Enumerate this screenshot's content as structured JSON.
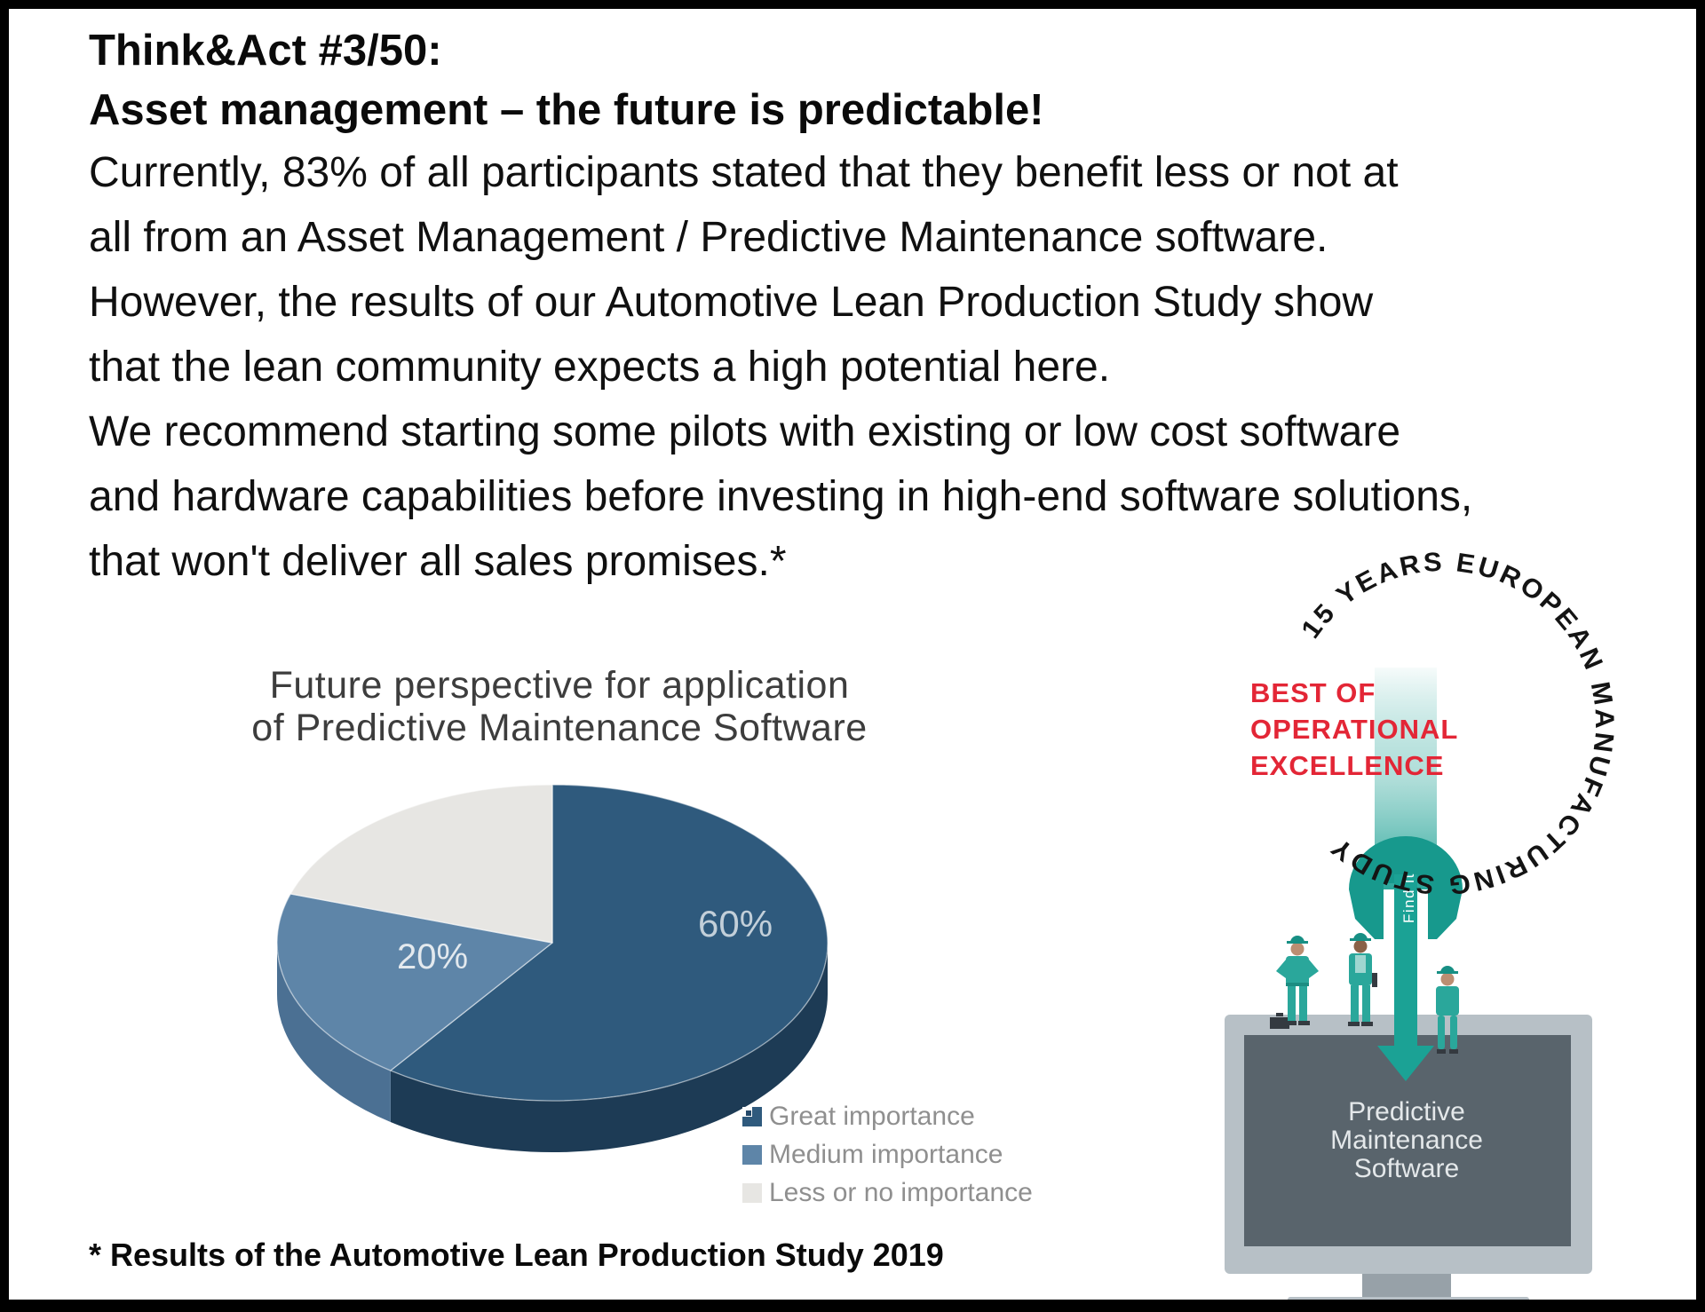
{
  "page": {
    "title_lines": [
      "Think&Act #3/50:",
      "Asset management – the future is predictable!"
    ],
    "body_lines": [
      "Currently, 83% of all participants stated that they benefit less or not at",
      "all from an Asset Management / Predictive Maintenance software.",
      "However, the results of our Automotive Lean Production Study show",
      "that the lean community expects a high potential here.",
      "We recommend starting some pilots with existing or low cost software",
      "and hardware capabilities before investing in high-end software solutions,",
      "that won't deliver all sales promises.*"
    ],
    "footnote": "* Results of the Automotive Lean Production Study 2019"
  },
  "chart_data": {
    "type": "pie",
    "effect": "3d",
    "title_lines": [
      "Future perspective for application",
      "of Predictive Maintenance Software"
    ],
    "categories": [
      "Great importance",
      "Medium importance",
      "Less or no importance"
    ],
    "values": [
      60,
      20,
      20
    ],
    "value_labels": [
      "60%",
      "20%",
      ""
    ],
    "label_positions": [
      [
        494,
        200
      ],
      [
        155,
        236
      ]
    ],
    "value_label_colors": [
      "#c2cfd9",
      "#e3e9ee"
    ],
    "start_angle_deg": -90,
    "legend_position": "bottom-right",
    "legend_text_color": "#8f8f8f",
    "colors": {
      "top": [
        "#2f5a7d",
        "#5e85a8",
        "#e7e6e3"
      ],
      "side": [
        "#1d3b55",
        "#4b7093",
        "#c9c9c5"
      ]
    }
  },
  "badge": {
    "circle_text": "15 YEARS EUROPEAN MANUFACTURING STUDY",
    "best_of_lines": [
      "BEST OF",
      "OPERATIONAL",
      "EXCELLENCE"
    ],
    "best_of_color": "#e32636",
    "wrench_label": "Find it",
    "teal": "#2aa79b"
  },
  "monitor": {
    "screen_lines": [
      "Predictive",
      "Maintenance",
      "Software"
    ]
  }
}
